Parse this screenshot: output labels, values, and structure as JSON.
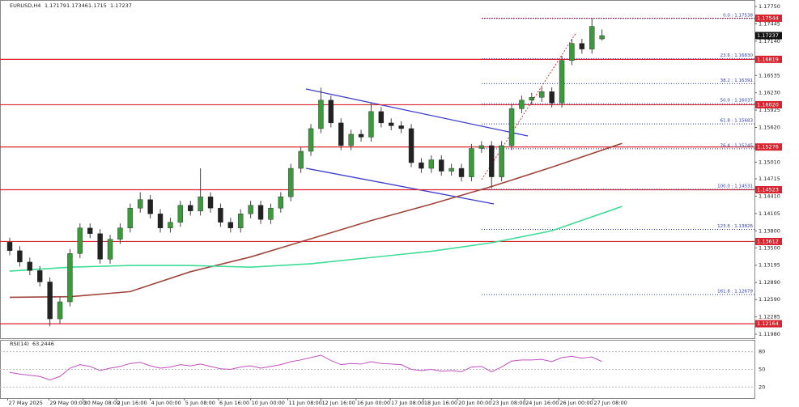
{
  "chart_data": {
    "type": "candlestick",
    "symbol": "EURUSD,H4",
    "ohlc_colors": {
      "up": "#3c9a3c",
      "down": "#222222",
      "wick": "#444444"
    },
    "xlim": [
      -0.97,
      74.19
    ],
    "ylim": [
      1.11909,
      1.17864
    ],
    "candles": [
      [
        1.136,
        1.1368,
        1.1337,
        1.1345
      ],
      [
        1.1345,
        1.1353,
        1.1317,
        1.1325
      ],
      [
        1.1325,
        1.1333,
        1.1302,
        1.131
      ],
      [
        1.131,
        1.1318,
        1.1282,
        1.129
      ],
      [
        1.129,
        1.1298,
        1.1212,
        1.1225
      ],
      [
        1.1225,
        1.1263,
        1.1217,
        1.1255
      ],
      [
        1.1255,
        1.1348,
        1.1247,
        1.134
      ],
      [
        1.134,
        1.1393,
        1.1332,
        1.1385
      ],
      [
        1.1385,
        1.1393,
        1.1367,
        1.1375
      ],
      [
        1.1375,
        1.1383,
        1.1322,
        1.133
      ],
      [
        1.133,
        1.1373,
        1.1322,
        1.1365
      ],
      [
        1.1365,
        1.1393,
        1.1357,
        1.1385
      ],
      [
        1.1385,
        1.1428,
        1.1377,
        1.142
      ],
      [
        1.142,
        1.1448,
        1.1412,
        1.1435
      ],
      [
        1.1435,
        1.1443,
        1.1402,
        1.141
      ],
      [
        1.141,
        1.1418,
        1.1377,
        1.1385
      ],
      [
        1.1385,
        1.1403,
        1.1377,
        1.1395
      ],
      [
        1.1395,
        1.1433,
        1.1387,
        1.1425
      ],
      [
        1.1425,
        1.1433,
        1.1407,
        1.1415
      ],
      [
        1.1415,
        1.149,
        1.1407,
        1.144
      ],
      [
        1.144,
        1.1448,
        1.1412,
        1.142
      ],
      [
        1.142,
        1.1428,
        1.1387,
        1.1395
      ],
      [
        1.1395,
        1.1403,
        1.1377,
        1.1385
      ],
      [
        1.1385,
        1.1418,
        1.1377,
        1.141
      ],
      [
        1.141,
        1.1433,
        1.1402,
        1.1425
      ],
      [
        1.1425,
        1.1433,
        1.1392,
        1.14
      ],
      [
        1.14,
        1.1428,
        1.1392,
        1.142
      ],
      [
        1.142,
        1.1448,
        1.1412,
        1.144
      ],
      [
        1.144,
        1.1498,
        1.1432,
        1.149
      ],
      [
        1.149,
        1.1528,
        1.1482,
        1.152
      ],
      [
        1.152,
        1.1568,
        1.1512,
        1.156
      ],
      [
        1.156,
        1.1632,
        1.1552,
        1.161
      ],
      [
        1.161,
        1.1618,
        1.1562,
        1.157
      ],
      [
        1.157,
        1.1578,
        1.1522,
        1.153
      ],
      [
        1.153,
        1.1558,
        1.1522,
        1.155
      ],
      [
        1.155,
        1.1558,
        1.1537,
        1.1545
      ],
      [
        1.1545,
        1.1605,
        1.1537,
        1.159
      ],
      [
        1.159,
        1.1598,
        1.1562,
        1.157
      ],
      [
        1.157,
        1.1578,
        1.1557,
        1.1565
      ],
      [
        1.1565,
        1.1573,
        1.1552,
        1.156
      ],
      [
        1.156,
        1.1568,
        1.1492,
        1.15
      ],
      [
        1.15,
        1.1508,
        1.1482,
        1.149
      ],
      [
        1.149,
        1.1513,
        1.1482,
        1.1505
      ],
      [
        1.1505,
        1.1513,
        1.1477,
        1.1485
      ],
      [
        1.1485,
        1.1498,
        1.1477,
        1.149
      ],
      [
        1.149,
        1.1498,
        1.1467,
        1.1475
      ],
      [
        1.1475,
        1.1533,
        1.1467,
        1.1525
      ],
      [
        1.1525,
        1.1538,
        1.1517,
        1.153
      ],
      [
        1.153,
        1.1538,
        1.1455,
        1.1475
      ],
      [
        1.1475,
        1.1538,
        1.1467,
        1.153
      ],
      [
        1.153,
        1.1603,
        1.1522,
        1.1595
      ],
      [
        1.1595,
        1.1618,
        1.1587,
        1.161
      ],
      [
        1.161,
        1.1623,
        1.1602,
        1.1615
      ],
      [
        1.1615,
        1.1633,
        1.1607,
        1.1625
      ],
      [
        1.1625,
        1.1633,
        1.1597,
        1.1605
      ],
      [
        1.1605,
        1.1688,
        1.1597,
        1.168
      ],
      [
        1.168,
        1.1718,
        1.1672,
        1.171
      ],
      [
        1.171,
        1.1718,
        1.1692,
        1.17
      ],
      [
        1.17,
        1.1755,
        1.1692,
        1.174
      ],
      [
        1.17179,
        1.17346,
        1.1715,
        1.17237
      ]
    ],
    "moving_averages": [
      {
        "color": "#a0453a",
        "x": [
          0,
          6,
          12,
          18,
          24,
          30,
          36,
          42,
          48,
          54,
          61
        ],
        "values": [
          1.1263,
          1.1264,
          1.1273,
          1.1308,
          1.1334,
          1.1366,
          1.1398,
          1.1427,
          1.1458,
          1.1492,
          1.1534
        ]
      },
      {
        "color": "#3ddc97",
        "x": [
          0,
          6,
          12,
          18,
          24,
          30,
          36,
          42,
          48,
          54,
          61
        ],
        "values": [
          1.1309,
          1.1316,
          1.1319,
          1.1319,
          1.1316,
          1.1322,
          1.1333,
          1.1344,
          1.1359,
          1.138,
          1.1423
        ]
      }
    ],
    "yticks": [
      {
        "value": 1.1775,
        "label": "1.17750"
      },
      1.17445,
      {
        "value": 1.1714,
        "label": "1.17140"
      },
      1.16535,
      {
        "value": 1.1623,
        "label": "1.16230"
      },
      1.15925,
      {
        "value": 1.1562,
        "label": "1.15620"
      },
      {
        "value": 1.1501,
        "label": "1.15010"
      },
      1.14715,
      {
        "value": 1.1441,
        "label": "1.14410"
      },
      1.14105,
      {
        "value": 1.138,
        "label": "1.13800"
      },
      {
        "value": 1.135,
        "label": "1.13500"
      },
      1.13195,
      {
        "value": 1.1289,
        "label": "1.12890"
      },
      {
        "value": 1.1259,
        "label": "1.12590"
      },
      1.12285,
      {
        "value": 1.1198,
        "label": "1.11980"
      }
    ],
    "levels": {
      "color": "#d9232e",
      "values": [
        1.17544,
        1.16819,
        {
          "value": 1.1602,
          "label": "1.16020"
        },
        1.15276,
        1.14523,
        1.13612,
        1.12164
      ],
      "dashed": [
        true,
        false,
        false,
        false,
        false,
        false,
        false
      ]
    },
    "fib": {
      "color": "#2a3bb0",
      "levels": [
        {
          "value": 1.17538,
          "label": "0.0 : 1.17538"
        },
        {
          "value": 1.1683,
          "label": "23.6 : 1.16830"
        },
        {
          "value": 1.16391,
          "label": "38.2 : 1.16391"
        },
        {
          "value": 1.16037,
          "label": "50.0 : 1.16037"
        },
        {
          "value": 1.15683,
          "label": "61.8 : 1.15683"
        },
        {
          "value": 1.15245,
          "label": "76.4 : 1.15245"
        },
        {
          "value": 1.14531,
          "label": "100.0 : 1.14531"
        },
        {
          "value": 1.13826,
          "label": "123.6 : 1.13826"
        },
        {
          "value": 1.12679,
          "label": "161.8 : 1.12679"
        }
      ]
    },
    "xticks": [
      {
        "value": -0.2,
        "label": "27 May 2025"
      },
      {
        "value": 3.9,
        "label": "29 May 00:00"
      },
      {
        "value": 7.3,
        "label": "30 May 08:00"
      },
      {
        "value": 10.6,
        "label": "2 Jun 16:00"
      },
      {
        "value": 14,
        "label": "4 Jun 00:00"
      },
      {
        "value": 17.4,
        "label": "5 Jun 08:00"
      },
      {
        "value": 20.8,
        "label": "6 Jun 16:00"
      },
      {
        "value": 24,
        "label": "10 Jun 00:00"
      },
      {
        "value": 27.7,
        "label": "11 Jun 08:00"
      },
      {
        "value": 31,
        "label": "12 Jun 16:00"
      },
      {
        "value": 34.5,
        "label": "16 Jun 00:00"
      },
      {
        "value": 37.9,
        "label": "17 Jun 08:00"
      },
      {
        "value": 41.2,
        "label": "18 Jun 16:00"
      },
      {
        "value": 44.6,
        "label": "20 Jun 00:00"
      },
      {
        "value": 48,
        "label": "23 Jun 08:00"
      },
      {
        "value": 51.3,
        "label": "24 Jun 16:00"
      },
      {
        "value": 54.7,
        "label": "26 Jun 00:00"
      },
      {
        "value": 58.1,
        "label": "27 Jun 08:00"
      }
    ],
    "rsi": {
      "title": "RSI(14)",
      "color": "#c24fc2",
      "ylim": [
        0,
        100
      ],
      "yticks": [
        80,
        50,
        20
      ],
      "values": [
        45,
        42,
        40,
        38,
        32,
        38,
        52,
        58,
        55,
        48,
        52,
        55,
        60,
        62,
        56,
        52,
        54,
        58,
        56,
        59,
        55,
        51,
        50,
        54,
        56,
        52,
        55,
        58,
        63,
        66,
        70,
        74,
        65,
        58,
        60,
        59,
        63,
        60,
        59,
        58,
        50,
        48,
        50,
        47,
        48,
        46,
        54,
        55,
        46,
        54,
        64,
        66,
        66,
        67,
        63,
        70,
        72,
        69,
        71,
        63.2446
      ]
    }
  }
}
